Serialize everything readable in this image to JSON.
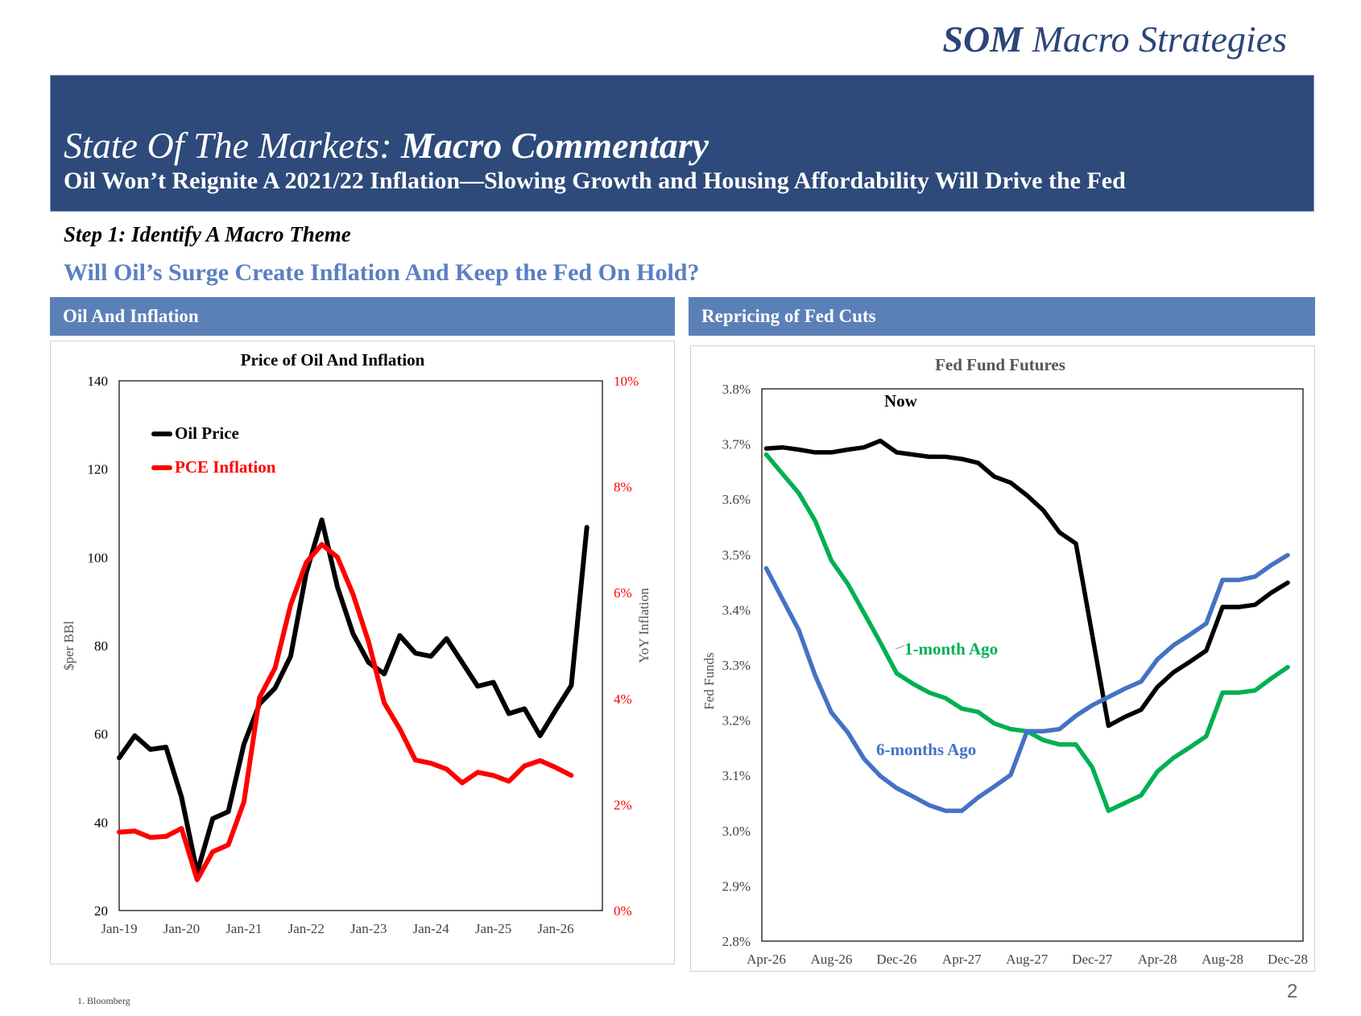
{
  "brand": {
    "bold": "SOM",
    "rest": " Macro Strategies"
  },
  "banner": {
    "title_italic": "State Of The Markets: ",
    "title_bold": "Macro Commentary",
    "subtitle": "Oil Won’t Reignite A 2021/22 Inflation—Slowing Growth and Housing Affordability Will Drive the Fed"
  },
  "step": "Step 1: Identify A Macro Theme",
  "question": "Will Oil’s Surge Create Inflation And Keep the Fed On Hold?",
  "panels": {
    "left": "Oil And Inflation",
    "right": "Repricing of Fed Cuts"
  },
  "footnote": "1. Bloomberg",
  "page_number": "2",
  "chart_data": [
    {
      "type": "line",
      "title": "Price of Oil And Inflation",
      "ylabel": "$per BBl",
      "y2label": "YoY Inflation",
      "ylim": [
        20,
        140
      ],
      "y2lim": [
        0,
        10
      ],
      "yticks": [
        "140",
        "120",
        "100",
        "80",
        "60",
        "40",
        "20"
      ],
      "y2ticks": [
        "10%",
        "8%",
        "6%",
        "4%",
        "2%",
        "0%"
      ],
      "xticks": [
        "Jan-19",
        "Jan-20",
        "Jan-21",
        "Jan-22",
        "Jan-23",
        "Jan-24",
        "Jan-25",
        "Jan-26"
      ],
      "x_frequency": "quarterly, starting Jan-19",
      "legend_placement": "top-left",
      "series": [
        {
          "name": "Oil Price",
          "axis": "left",
          "color": "#000000",
          "values": [
            54.6,
            59.6,
            56.5,
            57,
            45.7,
            28.6,
            40.8,
            42.4,
            57.7,
            66.8,
            70.4,
            77.6,
            96.5,
            108.5,
            93.3,
            82.7,
            76.2,
            73.6,
            82.3,
            78.3,
            77.6,
            81.6,
            76.2,
            70.8,
            71.7,
            64.6,
            65.7,
            59.6,
            65.4,
            71.0,
            106.8
          ]
        },
        {
          "name": "PCE Inflation",
          "axis": "right",
          "unit": "%",
          "color": "#ff0000",
          "values": [
            1.48,
            1.5,
            1.38,
            1.4,
            1.55,
            0.58,
            1.11,
            1.24,
            2.05,
            4.02,
            4.58,
            5.77,
            6.57,
            6.91,
            6.67,
            5.97,
            5.07,
            3.92,
            3.43,
            2.84,
            2.78,
            2.67,
            2.41,
            2.61,
            2.55,
            2.44,
            2.73,
            2.83,
            2.7,
            2.55
          ]
        }
      ]
    },
    {
      "type": "line",
      "title": "Fed Fund Futures",
      "ylabel": "Fed Funds",
      "ylim": [
        2.8,
        3.8
      ],
      "yticks": [
        "3.8%",
        "3.7%",
        "3.6%",
        "3.5%",
        "3.4%",
        "3.3%",
        "3.2%",
        "3.1%",
        "3.0%",
        "2.9%",
        "2.8%"
      ],
      "xticks": [
        "Apr-26",
        "Aug-26",
        "Dec-26",
        "Apr-27",
        "Aug-27",
        "Dec-27",
        "Apr-28",
        "Aug-28",
        "Dec-28"
      ],
      "x_frequency": "monthly, Apr-26 to Dec-28",
      "series": [
        {
          "name": "Now",
          "color": "#000000",
          "values": [
            3.692,
            3.694,
            3.69,
            3.685,
            3.685,
            3.69,
            3.694,
            3.706,
            3.685,
            3.681,
            3.677,
            3.677,
            3.673,
            3.666,
            3.641,
            3.63,
            3.607,
            3.58,
            3.54,
            3.52,
            3.355,
            3.19,
            3.206,
            3.219,
            3.26,
            3.287,
            3.306,
            3.326,
            3.405,
            3.405,
            3.409,
            3.431,
            3.449
          ]
        },
        {
          "name": "1-month Ago",
          "color": "#00b050",
          "values": [
            3.681,
            3.646,
            3.611,
            3.561,
            3.489,
            3.447,
            3.394,
            3.341,
            3.285,
            3.266,
            3.25,
            3.24,
            3.221,
            3.215,
            3.194,
            3.184,
            3.18,
            3.164,
            3.156,
            3.156,
            3.115,
            3.036,
            3.05,
            3.064,
            3.107,
            3.132,
            3.151,
            3.171,
            3.25,
            3.25,
            3.254,
            3.276,
            3.296
          ]
        },
        {
          "name": "6-months Ago",
          "color": "#4472c4",
          "values": [
            3.475,
            3.419,
            3.363,
            3.281,
            3.214,
            3.178,
            3.13,
            3.099,
            3.077,
            3.062,
            3.046,
            3.036,
            3.036,
            3.06,
            3.08,
            3.101,
            3.18,
            3.18,
            3.184,
            3.208,
            3.227,
            3.242,
            3.257,
            3.27,
            3.31,
            3.336,
            3.355,
            3.375,
            3.454,
            3.454,
            3.46,
            3.481,
            3.499
          ]
        }
      ]
    }
  ]
}
